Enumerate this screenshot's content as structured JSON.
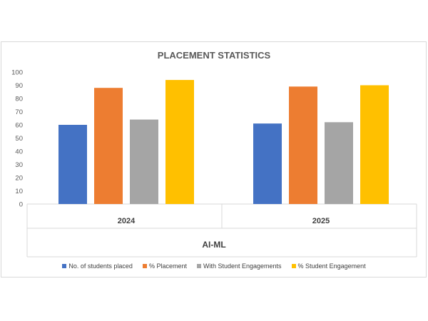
{
  "chart_data": {
    "type": "bar",
    "title": "PLACEMENT STATISTICS",
    "xlabel": "AI-ML",
    "ylabel": "",
    "categories": [
      "2024",
      "2025"
    ],
    "ylim": [
      0,
      100
    ],
    "yticks": [
      0,
      10,
      20,
      30,
      40,
      50,
      60,
      70,
      80,
      90,
      100
    ],
    "grid": false,
    "legend_position": "bottom",
    "series": [
      {
        "name": "No. of students placed",
        "color": "#4472c4",
        "values": [
          60,
          61
        ]
      },
      {
        "name": "% Placement",
        "color": "#ed7d31",
        "values": [
          88,
          89
        ]
      },
      {
        "name": "With Student Engagements",
        "color": "#a5a5a5",
        "values": [
          64,
          62
        ]
      },
      {
        "name": "% Student Engagement",
        "color": "#ffc000",
        "values": [
          94,
          90
        ]
      }
    ]
  }
}
